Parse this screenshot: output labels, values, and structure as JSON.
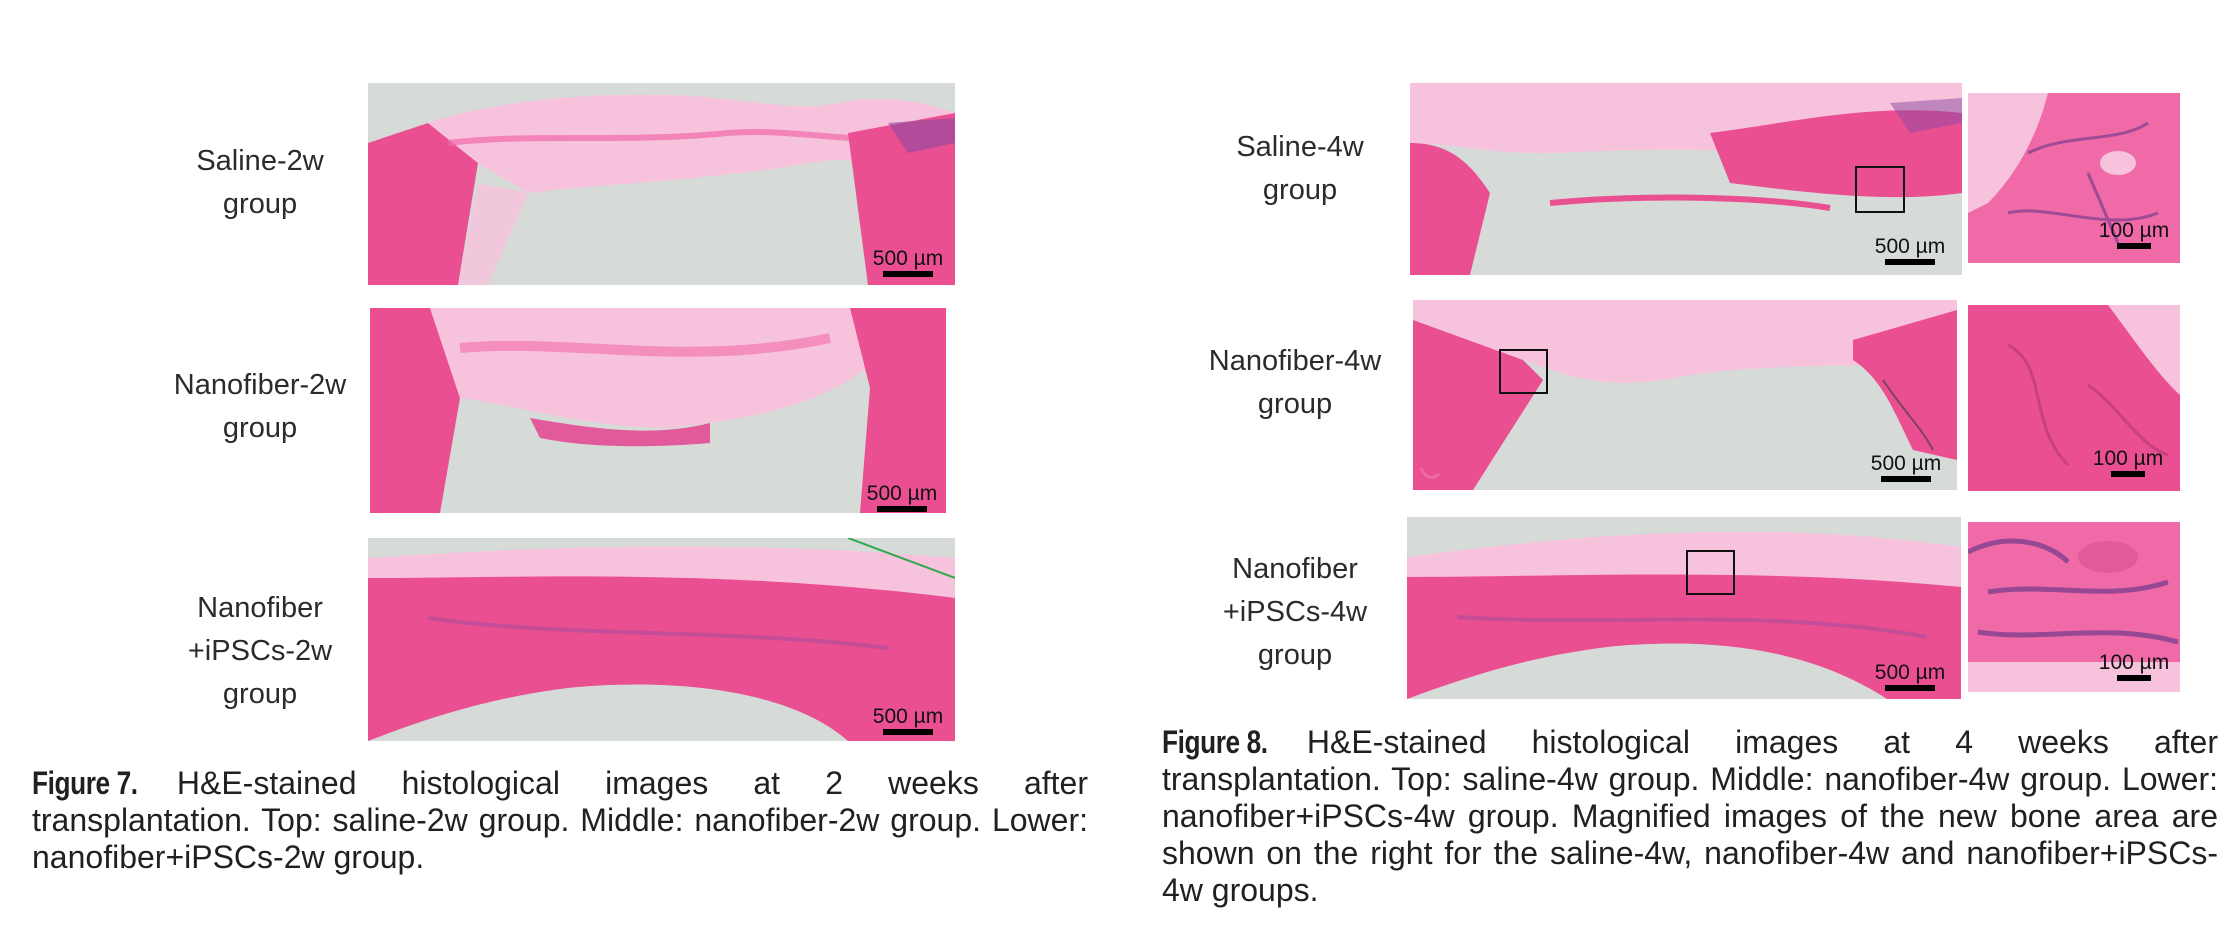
{
  "figure7": {
    "rows": [
      {
        "label": "Saline-2w\ngroup",
        "scale": "500 µm"
      },
      {
        "label": "Nanofiber-2w\ngroup",
        "scale": "500 µm"
      },
      {
        "label": "Nanofiber\n+iPSCs-2w\ngroup",
        "scale": "500 µm"
      }
    ],
    "caption_label": "Figure 7.",
    "caption_text": "H&E-stained histological images at 2 weeks after transplantation. Top: saline-2w group. Middle: nanofiber-2w group. Lower: nanofiber+iPSCs-2w group."
  },
  "figure8": {
    "rows": [
      {
        "label": "Saline-4w\ngroup",
        "scale": "500 µm",
        "inset_scale": "100 µm"
      },
      {
        "label": "Nanofiber-4w\ngroup",
        "scale": "500 µm",
        "inset_scale": "100 µm"
      },
      {
        "label": "Nanofiber\n+iPSCs-4w\ngroup",
        "scale": "500 µm",
        "inset_scale": "100 µm"
      }
    ],
    "caption_label": "Figure 8.",
    "caption_text": "H&E-stained histological images at 4 weeks after transplantation. Top: saline-4w group. Middle: nanofiber-4w group. Lower: nanofiber+iPSCs-4w group. Magnified images of the new bone area are shown on the right for the saline-4w, nanofiber-4w and nanofiber+iPSCs-4w groups."
  },
  "colors": {
    "tissue": "#f06aa8",
    "tissue_light": "#f7c3dc",
    "background": "#d6dbd8",
    "bone": "#ea4f92"
  }
}
